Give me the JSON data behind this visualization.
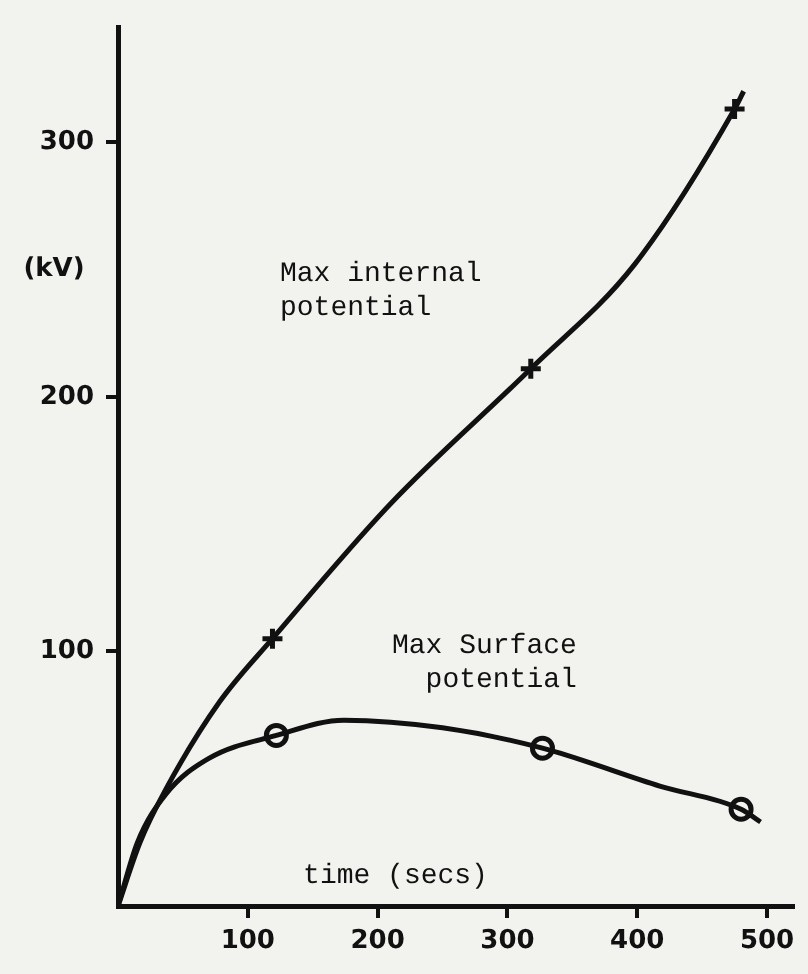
{
  "chart_data": {
    "type": "line",
    "xlabel": "time (secs)",
    "ylabel": "(kV)",
    "xlim": [
      0,
      520
    ],
    "ylim": [
      0,
      345
    ],
    "xticks": [
      100,
      200,
      300,
      400,
      500
    ],
    "yticks": [
      100,
      200,
      300
    ],
    "grid": false,
    "legend": false,
    "series": [
      {
        "marker": "none",
        "color": "#111111",
        "x": [
          0,
          17,
          37,
          78,
          119,
          210,
          318,
          398,
          475,
          482
        ],
        "values": [
          0,
          25,
          46,
          80,
          105,
          158,
          211,
          252,
          313,
          320
        ]
      },
      {
        "marker": "none",
        "color": "#111111",
        "x": [
          0,
          15,
          37,
          70,
          122,
          174,
          250,
          327,
          418,
          480,
          495
        ],
        "values": [
          0,
          25,
          44,
          58,
          67,
          73,
          70,
          62,
          47,
          38,
          33
        ]
      },
      {
        "type": "scatter",
        "marker": "cross",
        "color": "#111111",
        "x": [
          119,
          318,
          475
        ],
        "values": [
          105,
          211,
          313
        ]
      },
      {
        "type": "scatter",
        "marker": "circle",
        "color": "#111111",
        "x": [
          122,
          327,
          480
        ],
        "values": [
          67,
          62,
          38
        ]
      }
    ],
    "annotations": [
      "Max internal\npotential",
      "Max Surface\n  potential"
    ]
  }
}
